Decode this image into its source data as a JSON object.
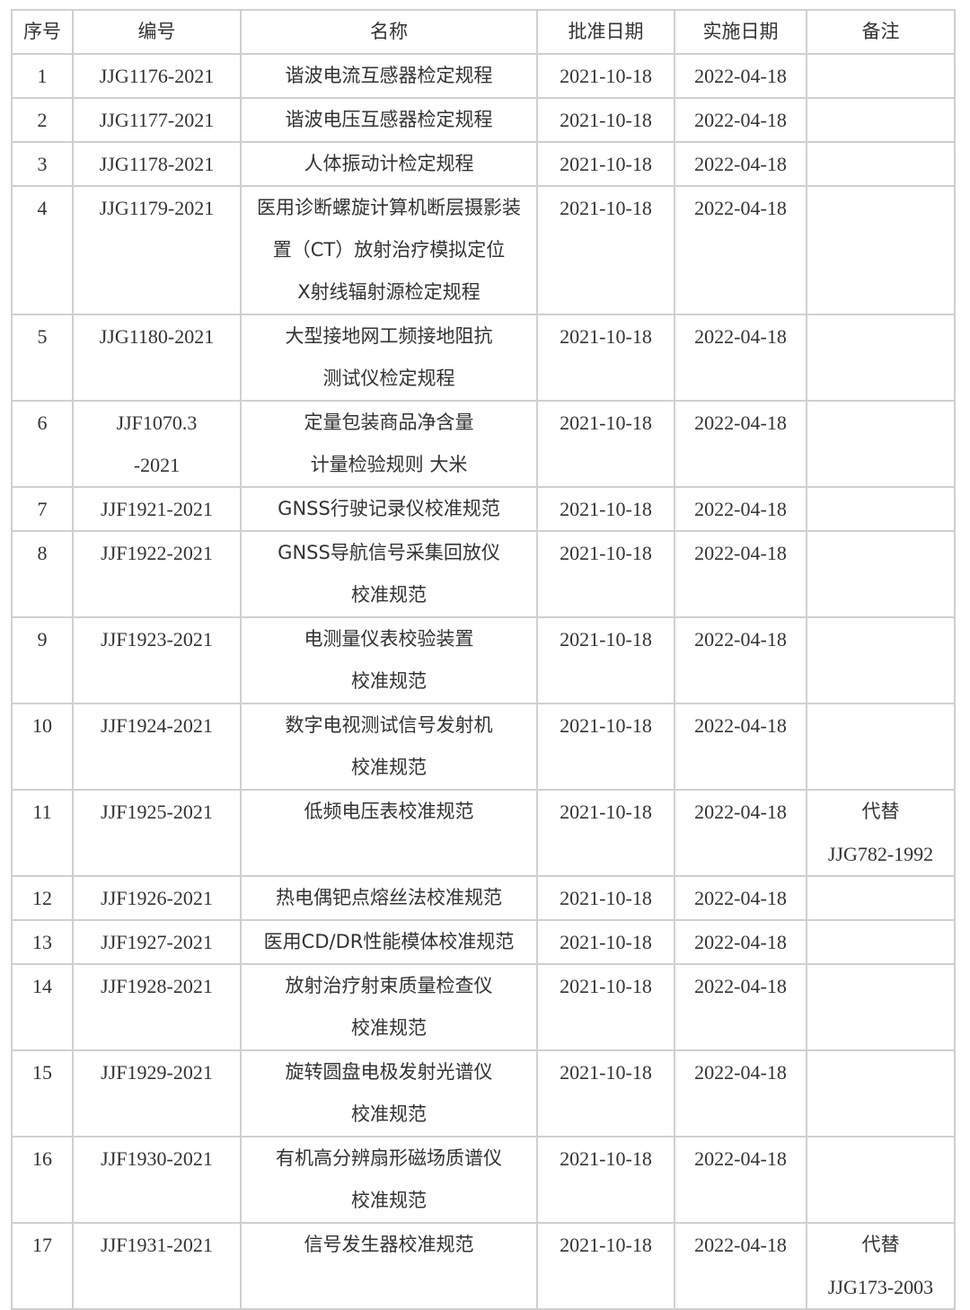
{
  "table": {
    "headers": [
      "序号",
      "编号",
      "名称",
      "批准日期",
      "实施日期",
      "备注"
    ],
    "rows": [
      {
        "no": [
          "1"
        ],
        "code": [
          "JJG1176-2021"
        ],
        "name": [
          "谐波电流互感器检定规程"
        ],
        "approve": "2021-10-18",
        "effective": "2022-04-18",
        "note": []
      },
      {
        "no": [
          "2"
        ],
        "code": [
          "JJG1177-2021"
        ],
        "name": [
          "谐波电压互感器检定规程"
        ],
        "approve": "2021-10-18",
        "effective": "2022-04-18",
        "note": []
      },
      {
        "no": [
          "3"
        ],
        "code": [
          "JJG1178-2021"
        ],
        "name": [
          "人体振动计检定规程"
        ],
        "approve": "2021-10-18",
        "effective": "2022-04-18",
        "note": []
      },
      {
        "no": [
          "4"
        ],
        "code": [
          "JJG1179-2021"
        ],
        "name": [
          "医用诊断螺旋计算机断层摄影装",
          "置（CT）放射治疗模拟定位",
          "X射线辐射源检定规程"
        ],
        "approve": "2021-10-18",
        "effective": "2022-04-18",
        "note": []
      },
      {
        "no": [
          "5"
        ],
        "code": [
          "JJG1180-2021"
        ],
        "name": [
          "大型接地网工频接地阻抗",
          "测试仪检定规程"
        ],
        "approve": "2021-10-18",
        "effective": "2022-04-18",
        "note": []
      },
      {
        "no": [
          "6"
        ],
        "code": [
          "JJF1070.3",
          "-2021"
        ],
        "name": [
          "定量包装商品净含量",
          "计量检验规则  大米"
        ],
        "approve": "2021-10-18",
        "effective": "2022-04-18",
        "note": []
      },
      {
        "no": [
          "7"
        ],
        "code": [
          "JJF1921-2021"
        ],
        "name": [
          "GNSS行驶记录仪校准规范"
        ],
        "approve": "2021-10-18",
        "effective": "2022-04-18",
        "note": []
      },
      {
        "no": [
          "8"
        ],
        "code": [
          "JJF1922-2021"
        ],
        "name": [
          "GNSS导航信号采集回放仪",
          "校准规范"
        ],
        "approve": "2021-10-18",
        "effective": "2022-04-18",
        "note": []
      },
      {
        "no": [
          "9"
        ],
        "code": [
          "JJF1923-2021"
        ],
        "name": [
          "电测量仪表校验装置",
          "校准规范"
        ],
        "approve": "2021-10-18",
        "effective": "2022-04-18",
        "note": []
      },
      {
        "no": [
          "10"
        ],
        "code": [
          "JJF1924-2021"
        ],
        "name": [
          "数字电视测试信号发射机",
          "校准规范"
        ],
        "approve": "2021-10-18",
        "effective": "2022-04-18",
        "note": []
      },
      {
        "no": [
          "11"
        ],
        "code": [
          "JJF1925-2021"
        ],
        "name": [
          "低频电压表校准规范"
        ],
        "approve": "2021-10-18",
        "effective": "2022-04-18",
        "note": [
          "代替",
          "JJG782-1992"
        ]
      },
      {
        "no": [
          "12"
        ],
        "code": [
          "JJF1926-2021"
        ],
        "name": [
          "热电偶钯点熔丝法校准规范"
        ],
        "approve": "2021-10-18",
        "effective": "2022-04-18",
        "note": []
      },
      {
        "no": [
          "13"
        ],
        "code": [
          "JJF1927-2021"
        ],
        "name": [
          "医用CD/DR性能模体校准规范"
        ],
        "approve": "2021-10-18",
        "effective": "2022-04-18",
        "note": []
      },
      {
        "no": [
          "14"
        ],
        "code": [
          "JJF1928-2021"
        ],
        "name": [
          "放射治疗射束质量检查仪",
          "校准规范"
        ],
        "approve": "2021-10-18",
        "effective": "2022-04-18",
        "note": []
      },
      {
        "no": [
          "15"
        ],
        "code": [
          "JJF1929-2021"
        ],
        "name": [
          "旋转圆盘电极发射光谱仪",
          "校准规范"
        ],
        "approve": "2021-10-18",
        "effective": "2022-04-18",
        "note": []
      },
      {
        "no": [
          "16"
        ],
        "code": [
          "JJF1930-2021"
        ],
        "name": [
          "有机高分辨扇形磁场质谱仪",
          "校准规范"
        ],
        "approve": "2021-10-18",
        "effective": "2022-04-18",
        "note": []
      },
      {
        "no": [
          "17"
        ],
        "code": [
          "JJF1931-2021"
        ],
        "name": [
          "信号发生器校准规范"
        ],
        "approve": "2021-10-18",
        "effective": "2022-04-18",
        "note": [
          "代替",
          "JJG173-2003"
        ]
      }
    ]
  }
}
